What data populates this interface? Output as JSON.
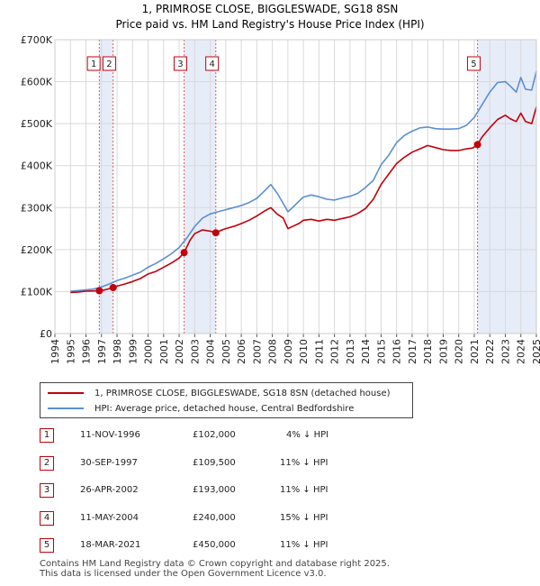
{
  "chart_data": {
    "type": "line",
    "title": "1, PRIMROSE CLOSE, BIGGLESWADE, SG18 8SN",
    "subtitle": "Price paid vs. HM Land Registry's House Price Index (HPI)",
    "xlabel": "",
    "ylabel": "",
    "xlim": [
      1994,
      2025
    ],
    "ylim": [
      0,
      700000
    ],
    "x_ticks": [
      "1994",
      "1995",
      "1996",
      "1997",
      "1998",
      "1999",
      "2000",
      "2001",
      "2002",
      "2003",
      "2004",
      "2005",
      "2006",
      "2007",
      "2008",
      "2009",
      "2010",
      "2011",
      "2012",
      "2013",
      "2014",
      "2015",
      "2016",
      "2017",
      "2018",
      "2019",
      "2020",
      "2021",
      "2022",
      "2023",
      "2024",
      "2025"
    ],
    "y_ticks": [
      {
        "value": 0,
        "label": "£0"
      },
      {
        "value": 100000,
        "label": "£100K"
      },
      {
        "value": 200000,
        "label": "£200K"
      },
      {
        "value": 300000,
        "label": "£300K"
      },
      {
        "value": 400000,
        "label": "£400K"
      },
      {
        "value": 500000,
        "label": "£500K"
      },
      {
        "value": 600000,
        "label": "£600K"
      },
      {
        "value": 700000,
        "label": "£700K"
      }
    ],
    "grid": true,
    "shaded_spans": [
      [
        1996.86,
        1997.75
      ],
      [
        2002.32,
        2004.36
      ],
      [
        2021.21,
        2025.0
      ]
    ],
    "series": [
      {
        "name": "1, PRIMROSE CLOSE, BIGGLESWADE, SG18 8SN (detached house)",
        "color": "#c0000b",
        "x": [
          1995.0,
          1995.5,
          1996.0,
          1996.5,
          1996.86,
          1997.2,
          1997.75,
          1998.0,
          1998.5,
          1999.0,
          1999.5,
          2000.0,
          2000.5,
          2001.0,
          2001.5,
          2002.0,
          2002.32,
          2002.7,
          2003.0,
          2003.5,
          2004.0,
          2004.36,
          2004.7,
          2005.0,
          2005.5,
          2006.0,
          2006.5,
          2007.0,
          2007.5,
          2007.9,
          2008.3,
          2008.7,
          2009.0,
          2009.3,
          2009.7,
          2010.0,
          2010.5,
          2011.0,
          2011.5,
          2012.0,
          2012.5,
          2013.0,
          2013.5,
          2014.0,
          2014.5,
          2015.0,
          2015.5,
          2016.0,
          2016.5,
          2017.0,
          2017.5,
          2018.0,
          2018.5,
          2019.0,
          2019.5,
          2020.0,
          2020.5,
          2020.9,
          2021.21,
          2021.5,
          2022.0,
          2022.5,
          2023.0,
          2023.3,
          2023.7,
          2024.0,
          2024.3,
          2024.7,
          2025.0
        ],
        "y": [
          98000,
          99000,
          101000,
          101500,
          102000,
          104000,
          109500,
          113000,
          118000,
          124000,
          131000,
          142000,
          148000,
          158000,
          168000,
          180000,
          193000,
          222000,
          238000,
          247000,
          244000,
          240000,
          246000,
          250000,
          255000,
          262000,
          270000,
          280000,
          292000,
          300000,
          285000,
          275000,
          250000,
          255000,
          262000,
          270000,
          272000,
          268000,
          272000,
          270000,
          274000,
          278000,
          286000,
          298000,
          320000,
          355000,
          380000,
          405000,
          420000,
          432000,
          440000,
          448000,
          443000,
          438000,
          436000,
          436000,
          440000,
          442000,
          450000,
          468000,
          490000,
          510000,
          520000,
          512000,
          505000,
          525000,
          505000,
          500000,
          540000
        ]
      },
      {
        "name": "HPI: Average price, detached house, Central Bedfordshire",
        "color": "#5b8fd4",
        "x": [
          1995.0,
          1995.5,
          1996.0,
          1996.5,
          1997.0,
          1997.5,
          1998.0,
          1998.5,
          1999.0,
          1999.5,
          2000.0,
          2000.5,
          2001.0,
          2001.5,
          2002.0,
          2002.5,
          2003.0,
          2003.5,
          2004.0,
          2004.5,
          2005.0,
          2005.5,
          2006.0,
          2006.5,
          2007.0,
          2007.5,
          2007.9,
          2008.3,
          2008.7,
          2009.0,
          2009.3,
          2009.7,
          2010.0,
          2010.5,
          2011.0,
          2011.5,
          2012.0,
          2012.5,
          2013.0,
          2013.5,
          2014.0,
          2014.5,
          2015.0,
          2015.5,
          2016.0,
          2016.5,
          2017.0,
          2017.5,
          2018.0,
          2018.5,
          2019.0,
          2019.5,
          2020.0,
          2020.5,
          2021.0,
          2021.5,
          2022.0,
          2022.5,
          2023.0,
          2023.3,
          2023.7,
          2024.0,
          2024.3,
          2024.7,
          2025.0
        ],
        "y": [
          101000,
          102500,
          104000,
          106000,
          111000,
          118000,
          126000,
          132000,
          139000,
          146000,
          158000,
          167000,
          178000,
          190000,
          205000,
          228000,
          255000,
          275000,
          285000,
          290000,
          295000,
          300000,
          305000,
          312000,
          322000,
          340000,
          355000,
          335000,
          310000,
          290000,
          300000,
          315000,
          325000,
          330000,
          326000,
          320000,
          318000,
          323000,
          327000,
          334000,
          348000,
          365000,
          402000,
          425000,
          455000,
          472000,
          482000,
          490000,
          492000,
          488000,
          487000,
          487000,
          488000,
          496000,
          515000,
          545000,
          575000,
          598000,
          600000,
          590000,
          575000,
          610000,
          582000,
          580000,
          625000
        ]
      }
    ],
    "sales": [
      {
        "n": "1",
        "date": "11-NOV-1996",
        "x": 1996.86,
        "price": 102000,
        "price_label": "£102,000",
        "hpi": "4% ↓ HPI"
      },
      {
        "n": "2",
        "date": "30-SEP-1997",
        "x": 1997.75,
        "price": 109500,
        "price_label": "£109,500",
        "hpi": "11% ↓ HPI"
      },
      {
        "n": "3",
        "date": "26-APR-2002",
        "x": 2002.32,
        "price": 193000,
        "price_label": "£193,000",
        "hpi": "11% ↓ HPI"
      },
      {
        "n": "4",
        "date": "11-MAY-2004",
        "x": 2004.36,
        "price": 240000,
        "price_label": "£240,000",
        "hpi": "15% ↓ HPI"
      },
      {
        "n": "5",
        "date": "18-MAR-2021",
        "x": 2021.21,
        "price": 450000,
        "price_label": "£450,000",
        "hpi": "11% ↓ HPI"
      }
    ],
    "legend_placement": "below"
  },
  "legend": {
    "red_label": "1, PRIMROSE CLOSE, BIGGLESWADE, SG18 8SN (detached house)",
    "blue_label": "HPI: Average price, detached house, Central Bedfordshire"
  },
  "footer": {
    "line1": "Contains HM Land Registry data © Crown copyright and database right 2025.",
    "line2": "This data is licensed under the Open Government Licence v3.0."
  },
  "colors": {
    "red": "#c0000b",
    "blue": "#5b8fd4",
    "shade": "#e6ecf8",
    "grid": "#d9d9d9",
    "vline": "#e05a5a"
  }
}
